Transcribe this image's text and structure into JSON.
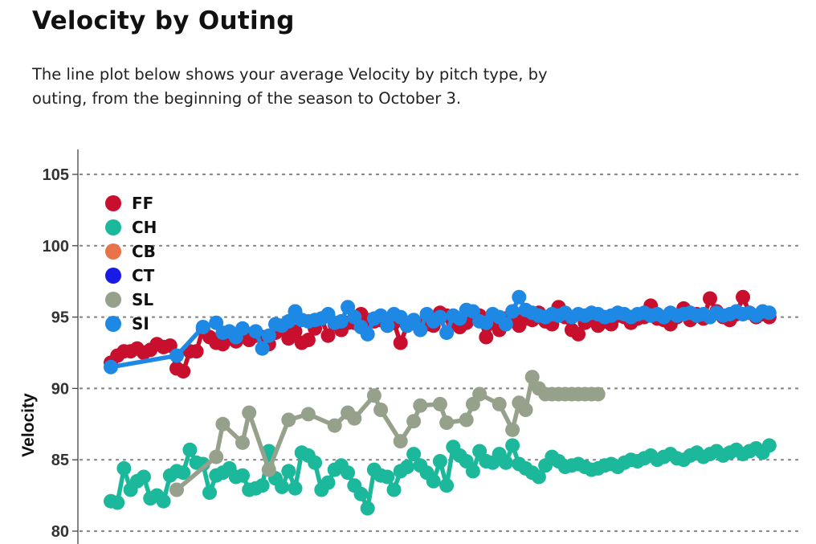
{
  "header": {
    "title": "Velocity by Outing",
    "description": "The line plot below shows your average Velocity by pitch type, by outing, from the beginning of the season to October 3."
  },
  "chart_data": {
    "type": "line",
    "title": "",
    "xlabel": "",
    "ylabel": "Velocity",
    "ylim": [
      79.7,
      106.5
    ],
    "yticks": [
      80,
      85,
      90,
      95,
      100,
      105
    ],
    "xlim": [
      0,
      101
    ],
    "grid": "horizontal-dotted",
    "legend_position": "top-left",
    "series": [
      {
        "name": "FF",
        "color": "#c8102e",
        "x": [
          0,
          1,
          2,
          3,
          4,
          5,
          6,
          7,
          8,
          9,
          10,
          11,
          12,
          13,
          14,
          15,
          16,
          17,
          18,
          19,
          20,
          21,
          22,
          23,
          24,
          25,
          26,
          27,
          28,
          29,
          30,
          31,
          32,
          33,
          34,
          35,
          36,
          37,
          38,
          39,
          40,
          41,
          42,
          43,
          44,
          45,
          46,
          47,
          48,
          49,
          50,
          51,
          52,
          53,
          54,
          55,
          56,
          57,
          58,
          59,
          60,
          61,
          62,
          63,
          64,
          65,
          66,
          67,
          68,
          69,
          70,
          71,
          72,
          73,
          74,
          75,
          76,
          77,
          78,
          79,
          80,
          81,
          82,
          83,
          84,
          85,
          86,
          87,
          88,
          89,
          90,
          91,
          92,
          93,
          94,
          95,
          96,
          97,
          98,
          99,
          100
        ],
        "y": [
          91.8,
          92.3,
          92.6,
          92.6,
          92.8,
          92.5,
          92.7,
          93.1,
          92.9,
          93.0,
          91.4,
          91.2,
          92.6,
          92.6,
          94.2,
          93.6,
          93.2,
          93.1,
          93.5,
          93.3,
          93.8,
          93.4,
          93.7,
          93.6,
          93.1,
          93.9,
          94.1,
          93.5,
          94.0,
          93.2,
          93.4,
          94.2,
          94.9,
          93.7,
          94.5,
          94.1,
          94.6,
          94.6,
          95.2,
          94.8,
          94.7,
          94.8,
          94.4,
          94.6,
          93.2,
          94.4,
          94.6,
          94.5,
          94.5,
          94.4,
          95.3,
          95.1,
          94.6,
          94.3,
          94.6,
          95.0,
          95.1,
          93.6,
          94.6,
          94.1,
          94.9,
          95.1,
          94.4,
          94.9,
          94.8,
          95.3,
          94.7,
          94.5,
          95.7,
          95.0,
          94.1,
          93.8,
          94.6,
          94.8,
          94.4,
          94.7,
          94.5,
          95.1,
          95.0,
          94.6,
          94.9,
          95.0,
          95.8,
          94.9,
          94.8,
          94.5,
          95.0,
          95.6,
          94.8,
          95.2,
          94.9,
          96.3,
          95.4,
          95.0,
          94.8,
          95.2,
          96.4,
          95.3,
          95.0,
          95.2,
          95.0
        ]
      },
      {
        "name": "CH",
        "color": "#1bb89b",
        "x": [
          0,
          1,
          2,
          3,
          4,
          5,
          6,
          7,
          8,
          9,
          10,
          11,
          12,
          13,
          14,
          15,
          16,
          17,
          18,
          19,
          20,
          21,
          22,
          23,
          24,
          25,
          26,
          27,
          28,
          29,
          30,
          31,
          32,
          33,
          34,
          35,
          36,
          37,
          38,
          39,
          40,
          41,
          42,
          43,
          44,
          45,
          46,
          47,
          48,
          49,
          50,
          51,
          52,
          53,
          54,
          55,
          56,
          57,
          58,
          59,
          60,
          61,
          62,
          63,
          64,
          65,
          66,
          67,
          68,
          69,
          70,
          71,
          72,
          73,
          74,
          75,
          76,
          77,
          78,
          79,
          80,
          81,
          82,
          83,
          84,
          85,
          86,
          87,
          88,
          89,
          90,
          91,
          92,
          93,
          94,
          95,
          96,
          97,
          98,
          99,
          100
        ],
        "y": [
          82.1,
          82.0,
          84.4,
          82.9,
          83.5,
          83.8,
          82.3,
          82.5,
          82.1,
          83.9,
          84.2,
          84.1,
          85.7,
          84.8,
          84.7,
          82.7,
          83.9,
          84.1,
          84.4,
          83.8,
          83.9,
          82.9,
          83.0,
          83.2,
          85.6,
          83.7,
          83.1,
          84.2,
          83.0,
          85.5,
          85.3,
          84.8,
          82.9,
          83.4,
          84.3,
          84.6,
          84.1,
          83.2,
          82.6,
          81.6,
          84.3,
          83.9,
          83.8,
          82.9,
          84.2,
          84.5,
          85.4,
          84.6,
          84.1,
          83.5,
          84.9,
          83.2,
          85.9,
          85.3,
          84.9,
          84.2,
          85.6,
          84.9,
          84.8,
          85.4,
          84.8,
          86.0,
          84.7,
          84.4,
          84.1,
          83.8,
          84.6,
          85.2,
          84.9,
          84.5,
          84.6,
          84.7,
          84.5,
          84.3,
          84.4,
          84.6,
          84.7,
          84.5,
          84.8,
          85.0,
          84.9,
          85.1,
          85.3,
          85.0,
          85.2,
          85.4,
          85.1,
          85.0,
          85.3,
          85.5,
          85.2,
          85.4,
          85.6,
          85.3,
          85.5,
          85.7,
          85.4,
          85.6,
          85.8,
          85.5,
          86.0
        ]
      },
      {
        "name": "CB",
        "color": "#e8734a",
        "x": [],
        "y": []
      },
      {
        "name": "CT",
        "color": "#1a1ae6",
        "x": [],
        "y": []
      },
      {
        "name": "SL",
        "color": "#95a18b",
        "x": [
          10,
          16,
          17,
          20,
          21,
          24,
          27,
          30,
          34,
          36,
          37,
          40,
          41,
          44,
          46,
          47,
          50,
          51,
          54,
          55,
          56,
          59,
          61,
          62,
          63,
          64,
          65,
          66,
          67,
          68,
          69,
          70,
          71,
          72,
          73,
          74
        ],
        "y": [
          82.9,
          85.2,
          87.5,
          86.2,
          88.3,
          84.3,
          87.8,
          88.2,
          87.4,
          88.3,
          87.9,
          89.5,
          88.5,
          86.3,
          87.7,
          88.8,
          88.9,
          87.6,
          87.8,
          88.9,
          89.6,
          88.9,
          87.1,
          89.0,
          88.5,
          90.8,
          90.0,
          89.6,
          89.6,
          89.6,
          89.6,
          89.6,
          89.6,
          89.6,
          89.6,
          89.6
        ]
      },
      {
        "name": "SI",
        "color": "#1e88e5",
        "x": [
          0,
          10,
          14,
          16,
          17,
          18,
          19,
          20,
          22,
          23,
          24,
          25,
          26,
          27,
          28,
          29,
          30,
          31,
          32,
          33,
          34,
          35,
          36,
          37,
          38,
          39,
          40,
          41,
          42,
          43,
          44,
          45,
          46,
          47,
          48,
          49,
          50,
          51,
          52,
          53,
          54,
          55,
          56,
          57,
          58,
          59,
          60,
          61,
          62,
          63,
          64,
          65,
          66,
          67,
          68,
          69,
          70,
          71,
          72,
          73,
          74,
          75,
          76,
          77,
          78,
          79,
          80,
          81,
          82,
          83,
          84,
          85,
          86,
          87,
          88,
          89,
          90,
          91,
          92,
          93,
          94,
          95,
          96,
          97,
          98,
          99,
          100
        ],
        "y": [
          91.5,
          92.3,
          94.3,
          94.6,
          93.9,
          94.0,
          93.6,
          94.2,
          94.0,
          92.8,
          93.7,
          94.5,
          94.4,
          94.7,
          95.4,
          94.8,
          94.7,
          94.8,
          94.9,
          95.2,
          94.6,
          94.7,
          95.7,
          95.0,
          94.3,
          93.8,
          94.9,
          95.1,
          94.4,
          95.2,
          95.0,
          94.4,
          94.8,
          94.1,
          95.2,
          94.7,
          95.0,
          93.9,
          95.1,
          94.9,
          95.5,
          95.4,
          94.7,
          94.6,
          95.2,
          95.0,
          94.5,
          95.4,
          96.4,
          95.5,
          95.3,
          95.1,
          95.0,
          95.2,
          95.1,
          95.3,
          95.0,
          95.2,
          95.1,
          95.3,
          95.2,
          95.0,
          95.1,
          95.3,
          95.2,
          95.0,
          95.2,
          95.3,
          95.1,
          95.2,
          95.0,
          95.3,
          95.1,
          95.2,
          95.3,
          95.1,
          95.2,
          95.0,
          95.3,
          95.1,
          95.2,
          95.4,
          95.2,
          95.3,
          95.1,
          95.4,
          95.3
        ]
      }
    ]
  }
}
